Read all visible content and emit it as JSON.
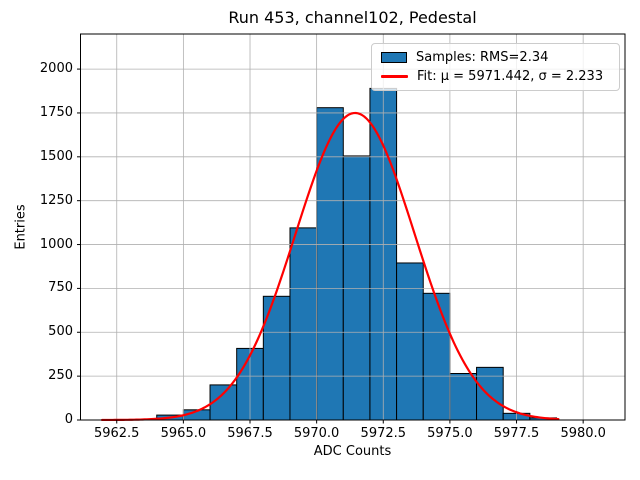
{
  "figure": {
    "title": "Run 453, channel102, Pedestal",
    "xlabel": "ADC Counts",
    "ylabel": "Entries"
  },
  "legend": {
    "samples_label": "Samples: RMS=2.34",
    "fit_label": "Fit: μ = 5971.442, σ = 2.233"
  },
  "colors": {
    "bar_fill": "#1f77b4",
    "bar_edge": "#000000",
    "fit_line": "#ff0000",
    "grid": "#b0b0b0",
    "spine": "#000000",
    "text": "#000000",
    "background": "#ffffff"
  },
  "chart_data": {
    "type": "bar",
    "subtype": "histogram-with-gaussian-fit",
    "title": "Run 453, channel102, Pedestal",
    "xlabel": "ADC Counts",
    "ylabel": "Entries",
    "xlim": [
      5961.14,
      5981.57
    ],
    "ylim": [
      0,
      2200
    ],
    "grid": true,
    "grid_above_bars": true,
    "legend_position": "upper right",
    "x_ticks": [
      5962.5,
      5965.0,
      5967.5,
      5970.0,
      5972.5,
      5975.0,
      5977.5,
      5980.0
    ],
    "x_tick_labels": [
      "5962.5",
      "5965.0",
      "5967.5",
      "5970.0",
      "5972.5",
      "5975.0",
      "5977.5",
      "5980.0"
    ],
    "y_ticks": [
      0,
      250,
      500,
      750,
      1000,
      1250,
      1500,
      1750,
      2000
    ],
    "y_tick_labels": [
      "0",
      "250",
      "500",
      "750",
      "1000",
      "1250",
      "1500",
      "1750",
      "2000"
    ],
    "histogram": {
      "label": "Samples: RMS=2.34",
      "rms": 2.34,
      "bin_width": 1,
      "bin_left_edges": [
        5964,
        5965,
        5966,
        5967,
        5968,
        5969,
        5970,
        5971,
        5972,
        5973,
        5974,
        5975,
        5976,
        5977,
        5978
      ],
      "counts": [
        28,
        58,
        200,
        408,
        705,
        1095,
        1780,
        1505,
        1890,
        895,
        722,
        265,
        300,
        38,
        12
      ]
    },
    "fit": {
      "label": "Fit: μ = 5971.442, σ = 2.233",
      "model": "gaussian",
      "mu": 5971.442,
      "sigma": 2.233,
      "amplitude": 1750,
      "x_range": [
        5961.95,
        5979.1
      ]
    }
  }
}
